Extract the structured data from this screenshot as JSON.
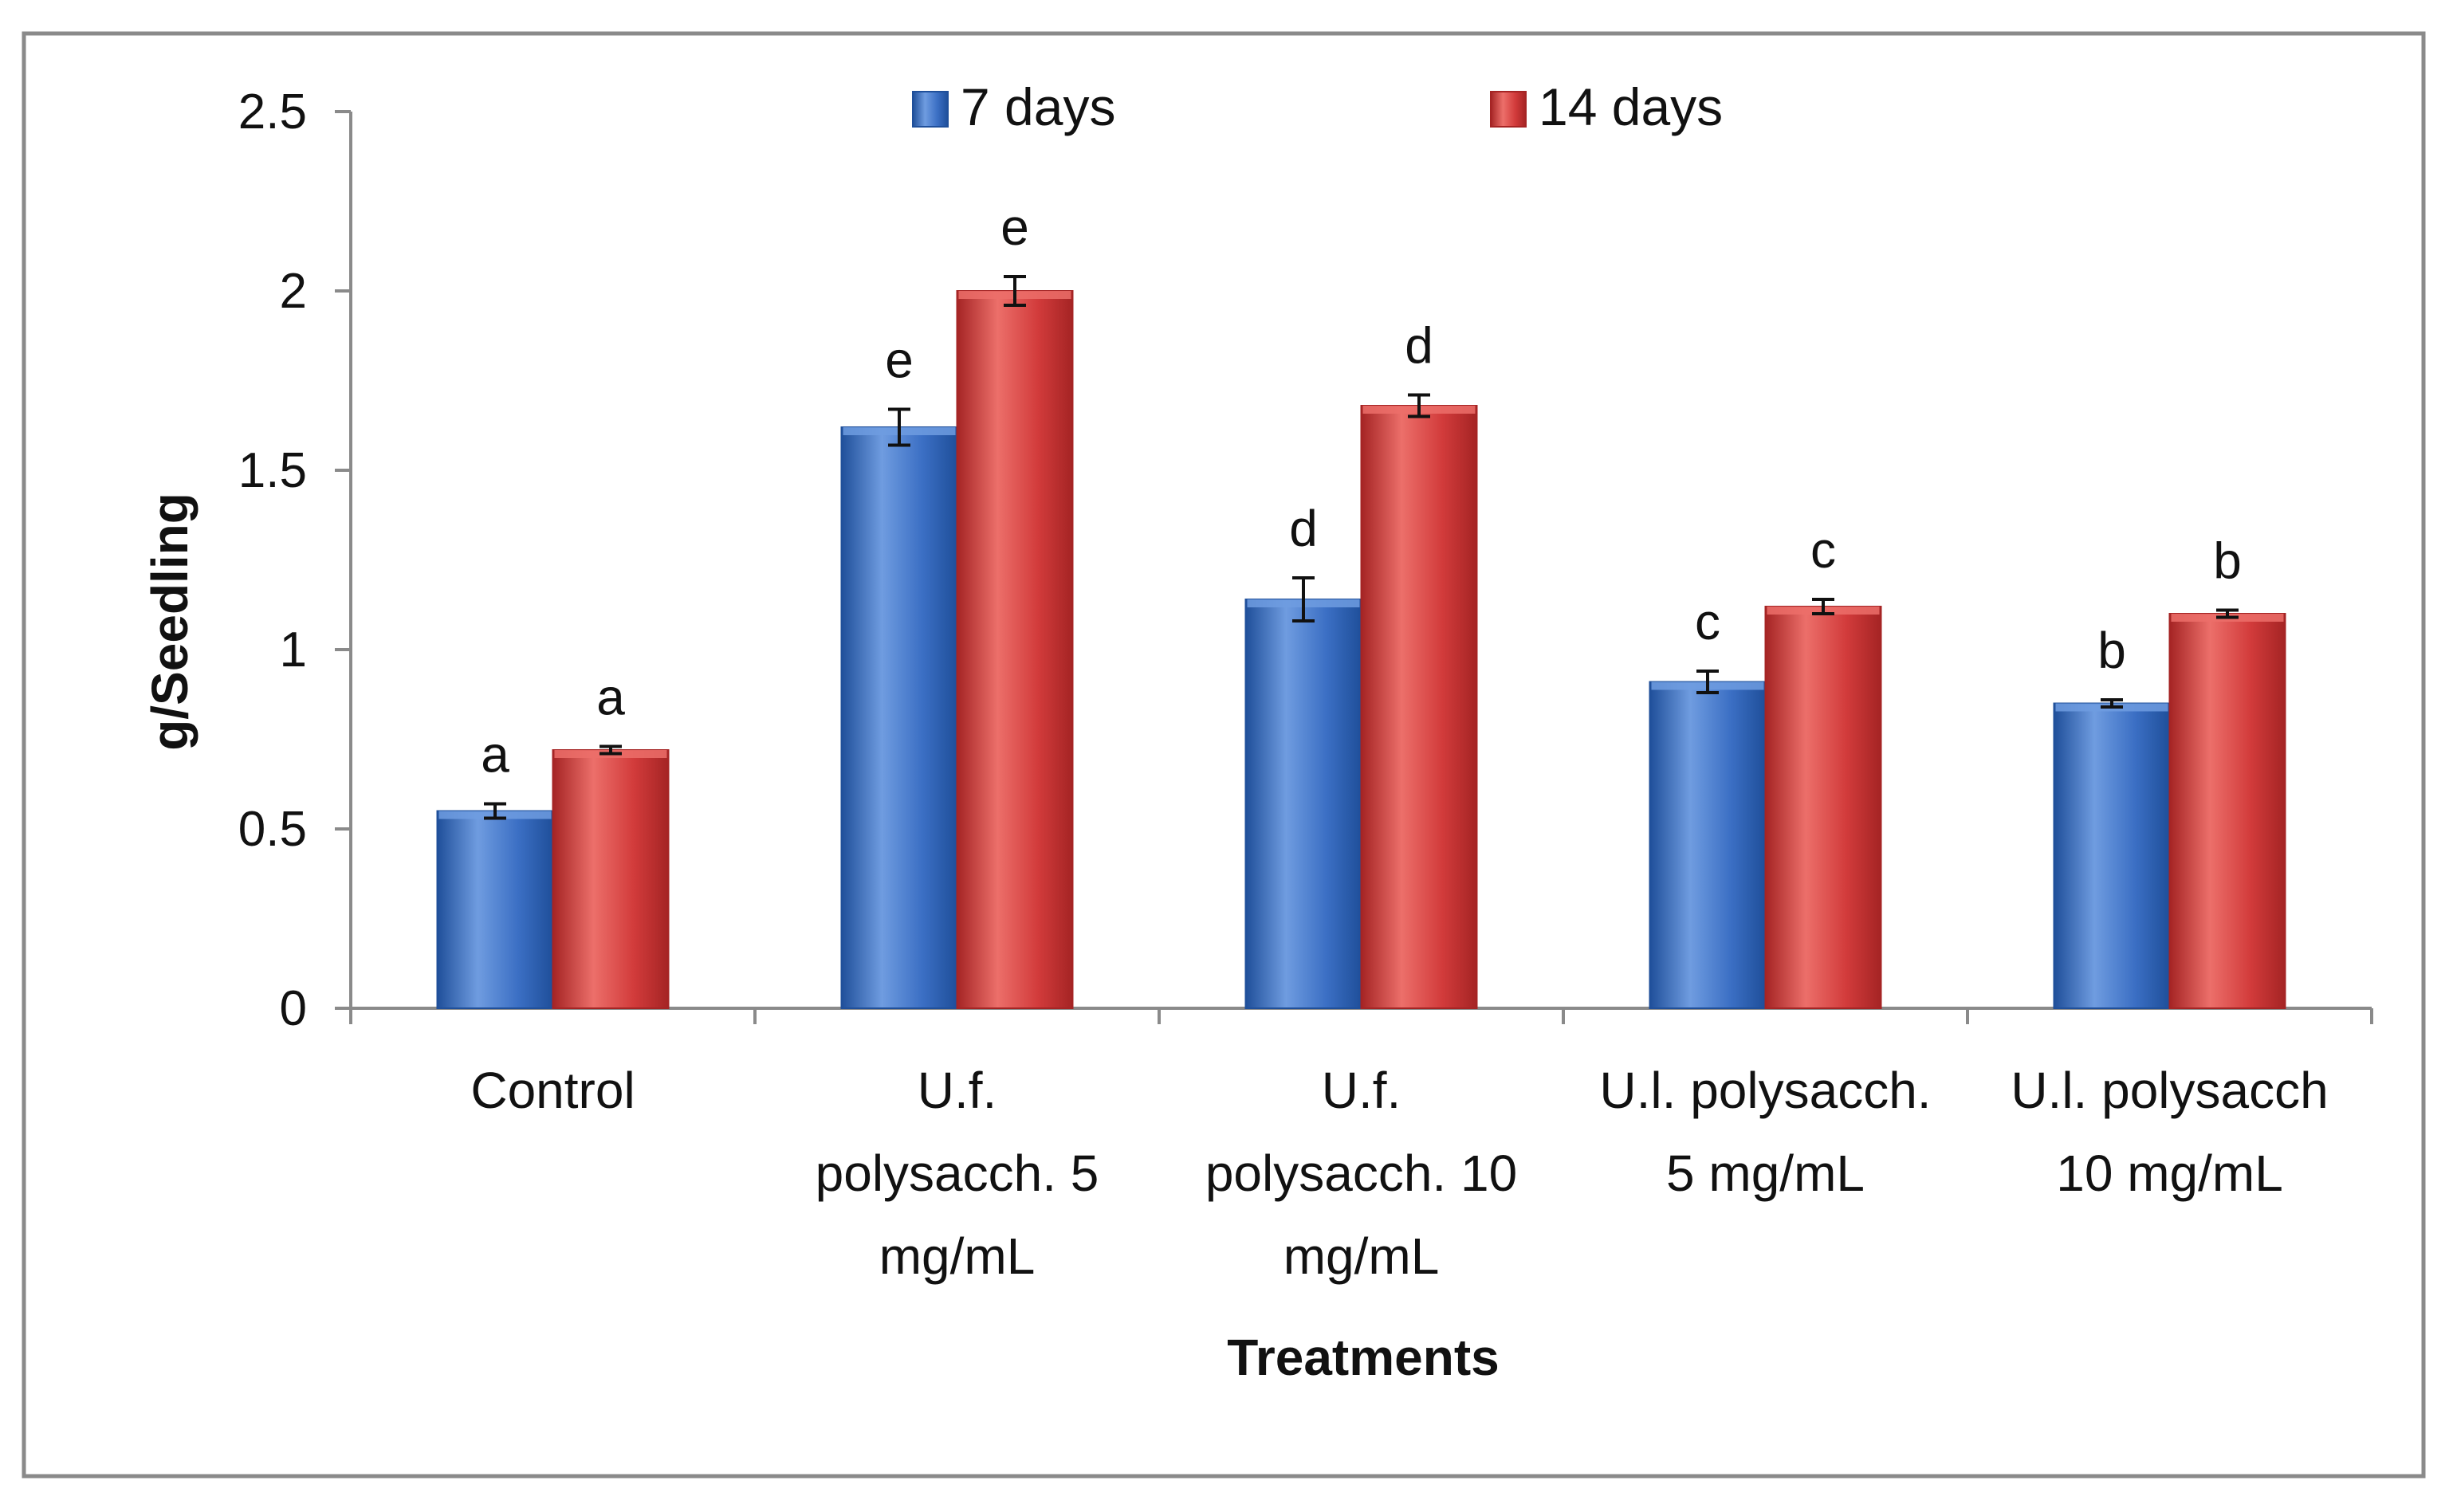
{
  "chart_data": {
    "type": "bar",
    "title": "",
    "xlabel": "Treatments",
    "ylabel": "g/Seedling",
    "ylim": [
      0,
      2.5
    ],
    "yticks": [
      0,
      0.5,
      1,
      1.5,
      2,
      2.5
    ],
    "ytick_labels": [
      "0",
      "0.5",
      "1",
      "1.5",
      "2",
      "2.5"
    ],
    "grid": false,
    "legend_position": "top",
    "categories": [
      [
        "Control"
      ],
      [
        "U.f.",
        "polysacch. 5",
        "mg/mL"
      ],
      [
        "U.f.",
        "polysacch. 10",
        "mg/mL"
      ],
      [
        "U.l. polysacch.",
        "5 mg/mL"
      ],
      [
        "U.l. polysacch",
        "10  mg/mL"
      ]
    ],
    "series": [
      {
        "name": "7 days",
        "color": "#3b6fc4",
        "color_light": "#6f9ce0",
        "color_dark": "#1f4f9a",
        "values": [
          0.55,
          1.62,
          1.14,
          0.91,
          0.85
        ],
        "errors": [
          0.02,
          0.05,
          0.06,
          0.03,
          0.01
        ],
        "significance": [
          "a",
          "e",
          "d",
          "c",
          "b"
        ]
      },
      {
        "name": "14 days",
        "color": "#d23b3b",
        "color_light": "#ec6f6a",
        "color_dark": "#a52424",
        "values": [
          0.72,
          2.0,
          1.68,
          1.12,
          1.1
        ],
        "errors": [
          0.01,
          0.04,
          0.03,
          0.02,
          0.01
        ],
        "significance": [
          "a",
          "e",
          "d",
          "c",
          "b"
        ]
      }
    ]
  }
}
